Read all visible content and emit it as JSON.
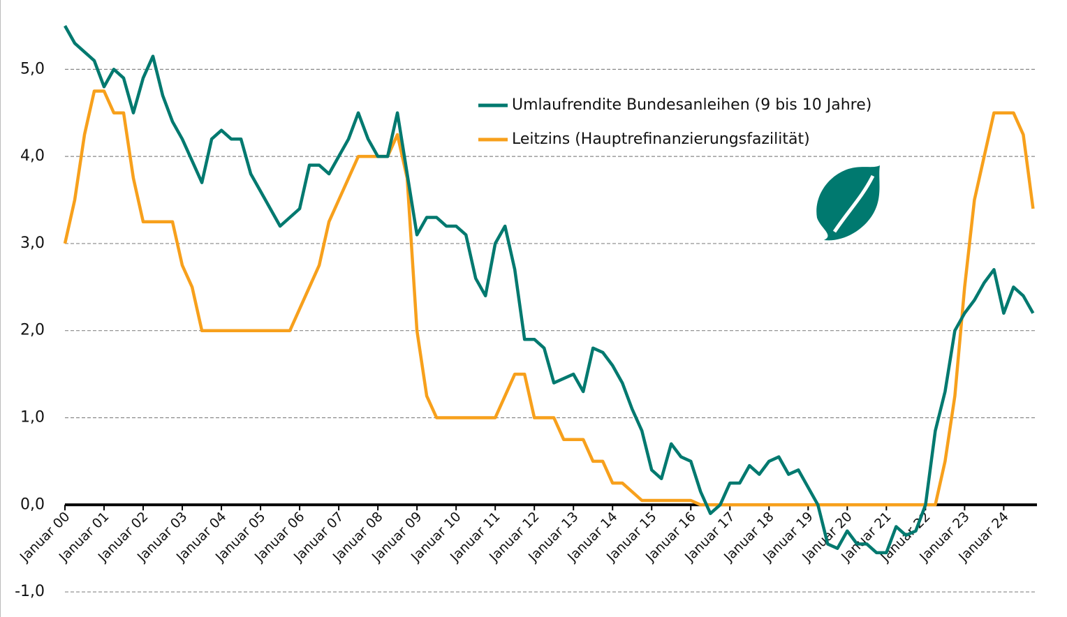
{
  "chart_data": {
    "type": "line",
    "categories": [
      "Januar 00",
      null,
      null,
      null,
      "Januar 01",
      null,
      null,
      null,
      "Januar 02",
      null,
      null,
      null,
      "Januar 03",
      null,
      null,
      null,
      "Januar 04",
      null,
      null,
      null,
      "Januar 05",
      null,
      null,
      null,
      "Januar 06",
      null,
      null,
      null,
      "Januar 07",
      null,
      null,
      null,
      "Januar 08",
      null,
      null,
      null,
      "Januar 09",
      null,
      null,
      null,
      "Januar 10",
      null,
      null,
      null,
      "Januar 11",
      null,
      null,
      null,
      "Januar 12",
      null,
      null,
      null,
      "Januar 13",
      null,
      null,
      null,
      "Januar 14",
      null,
      null,
      null,
      "Januar 15",
      null,
      null,
      null,
      "Januar 16",
      null,
      null,
      null,
      "Januar 17",
      null,
      null,
      null,
      "Januar 18",
      null,
      null,
      null,
      "Januar 19",
      null,
      null,
      null,
      "Januar 20",
      null,
      null,
      null,
      "Januar 21",
      null,
      null,
      null,
      "Januar 22",
      null,
      null,
      null,
      "Januar 23",
      null,
      null,
      null,
      "Januar 24",
      null,
      null,
      null
    ],
    "series": [
      {
        "name": "Umlaufrendite Bundesanleihen (9 bis 10 Jahre)",
        "color": "#00796f",
        "values": [
          5.5,
          5.3,
          5.2,
          5.1,
          4.8,
          5.0,
          4.9,
          4.5,
          4.9,
          5.15,
          4.7,
          4.4,
          4.2,
          3.95,
          3.7,
          4.2,
          4.3,
          4.2,
          4.2,
          3.8,
          3.6,
          3.4,
          3.2,
          3.3,
          3.4,
          3.9,
          3.9,
          3.8,
          4.0,
          4.2,
          4.5,
          4.2,
          4.0,
          4.0,
          4.5,
          3.8,
          3.1,
          3.3,
          3.3,
          3.2,
          3.2,
          3.1,
          2.6,
          2.4,
          3.0,
          3.2,
          2.7,
          1.9,
          1.9,
          1.8,
          1.4,
          1.45,
          1.5,
          1.3,
          1.8,
          1.75,
          1.6,
          1.4,
          1.1,
          0.85,
          0.4,
          0.3,
          0.7,
          0.55,
          0.5,
          0.15,
          -0.1,
          0.0,
          0.25,
          0.25,
          0.45,
          0.35,
          0.5,
          0.55,
          0.35,
          0.4,
          0.2,
          0.0,
          -0.45,
          -0.5,
          -0.3,
          -0.45,
          -0.45,
          -0.55,
          -0.55,
          -0.25,
          -0.35,
          -0.3,
          0.0,
          0.85,
          1.3,
          2.0,
          2.2,
          2.35,
          2.55,
          2.7,
          2.2,
          2.5,
          2.4,
          2.2
        ]
      },
      {
        "name": "Leitzins (Hauptrefinanzierungsfazilität)",
        "color": "#f7a01c",
        "values": [
          3.0,
          3.5,
          4.25,
          4.75,
          4.75,
          4.5,
          4.5,
          3.75,
          3.25,
          3.25,
          3.25,
          3.25,
          2.75,
          2.5,
          2.0,
          2.0,
          2.0,
          2.0,
          2.0,
          2.0,
          2.0,
          2.0,
          2.0,
          2.0,
          2.25,
          2.5,
          2.75,
          3.25,
          3.5,
          3.75,
          4.0,
          4.0,
          4.0,
          4.0,
          4.25,
          3.75,
          2.0,
          1.25,
          1.0,
          1.0,
          1.0,
          1.0,
          1.0,
          1.0,
          1.0,
          1.25,
          1.5,
          1.5,
          1.0,
          1.0,
          1.0,
          0.75,
          0.75,
          0.75,
          0.5,
          0.5,
          0.25,
          0.25,
          0.15,
          0.05,
          0.05,
          0.05,
          0.05,
          0.05,
          0.05,
          0.0,
          0.0,
          0.0,
          0.0,
          0.0,
          0.0,
          0.0,
          0.0,
          0.0,
          0.0,
          0.0,
          0.0,
          0.0,
          0.0,
          0.0,
          0.0,
          0.0,
          0.0,
          0.0,
          0.0,
          0.0,
          0.0,
          0.0,
          0.0,
          0.0,
          0.5,
          1.25,
          2.5,
          3.5,
          4.0,
          4.5,
          4.5,
          4.5,
          4.25,
          3.4
        ]
      }
    ],
    "ylim": [
      -1.2,
      5.7
    ],
    "yticks": [
      {
        "value": -1,
        "label": "-1,0"
      },
      {
        "value": 0,
        "label": "0,0"
      },
      {
        "value": 1,
        "label": "1,0"
      },
      {
        "value": 2,
        "label": "2,0"
      },
      {
        "value": 3,
        "label": "3,0"
      },
      {
        "value": 4,
        "label": "4,0"
      },
      {
        "value": 5,
        "label": "5,0"
      }
    ],
    "grid": true,
    "legend": "upper center"
  }
}
